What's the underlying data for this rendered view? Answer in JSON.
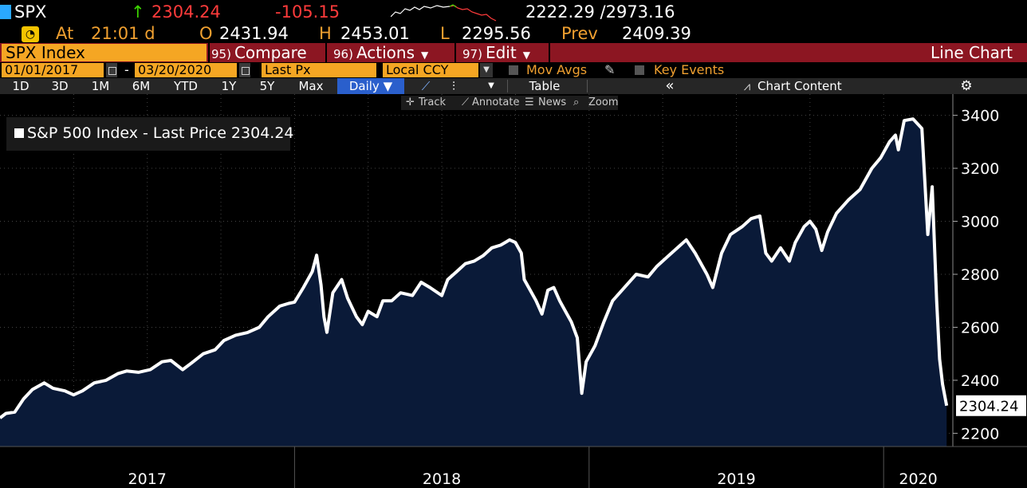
{
  "header": {
    "ticker": "SPX",
    "last_price": "2304.24",
    "net_change": "-105.15",
    "range": "2222.29 /2973.16",
    "up_arrow": "↑"
  },
  "quote": {
    "rt_icon": "gauge-icon",
    "at_label": "At",
    "time": "21:01 d",
    "open_label": "O",
    "open": "2431.94",
    "high_label": "H",
    "high": "2453.01",
    "low_label": "L",
    "low": "2295.56",
    "prev_label": "Prev",
    "prev": "2409.39"
  },
  "menubar": {
    "security": "SPX Index",
    "compare_num": "95)",
    "compare": "Compare",
    "actions_num": "96)",
    "actions": "Actions",
    "edit_num": "97)",
    "edit": "Edit",
    "chart_type": "Line Chart"
  },
  "controls": {
    "start_date": "01/01/2017",
    "end_date": "03/20/2020",
    "dash": "-",
    "field": "Last Px",
    "currency": "Local CCY",
    "mov_avgs": "Mov Avgs",
    "key_events": "Key Events"
  },
  "toolbar": {
    "periods": [
      "1D",
      "3D",
      "1M",
      "6M",
      "YTD",
      "1Y",
      "5Y",
      "Max"
    ],
    "frequency": "Daily ▼",
    "table": "Table",
    "collapse": "«",
    "chart_content": "Chart Content"
  },
  "subtoolbar": {
    "track": "Track",
    "annotate": "Annotate",
    "news": "News",
    "zoom": "Zoom"
  },
  "legend": {
    "text": "S&P 500 Index - Last Price 2304.24"
  },
  "colors": {
    "line": "#ffffff",
    "area_fill": "#0a1a38",
    "up": "#3cd400",
    "down": "#ff3b3b",
    "amber": "#f5a623",
    "menubar": "#8c1622"
  },
  "chart_data": {
    "type": "area",
    "x_unit": "year",
    "ylim": [
      2150,
      3480
    ],
    "y_ticks": [
      2200,
      2400,
      2600,
      2800,
      3000,
      3200,
      3400
    ],
    "x_year_labels": [
      "2017",
      "2018",
      "2019",
      "2020"
    ],
    "last_value_label": "2304.24",
    "grid": true,
    "legend_position": "top-left",
    "series": [
      {
        "name": "S&P 500 Index - Last Price",
        "points": [
          [
            2017.0,
            2258
          ],
          [
            2017.02,
            2275
          ],
          [
            2017.05,
            2280
          ],
          [
            2017.08,
            2330
          ],
          [
            2017.11,
            2365
          ],
          [
            2017.15,
            2390
          ],
          [
            2017.18,
            2370
          ],
          [
            2017.22,
            2360
          ],
          [
            2017.25,
            2345
          ],
          [
            2017.28,
            2360
          ],
          [
            2017.32,
            2390
          ],
          [
            2017.36,
            2400
          ],
          [
            2017.4,
            2425
          ],
          [
            2017.43,
            2435
          ],
          [
            2017.47,
            2430
          ],
          [
            2017.51,
            2440
          ],
          [
            2017.55,
            2470
          ],
          [
            2017.58,
            2475
          ],
          [
            2017.62,
            2440
          ],
          [
            2017.65,
            2465
          ],
          [
            2017.69,
            2500
          ],
          [
            2017.73,
            2515
          ],
          [
            2017.76,
            2550
          ],
          [
            2017.8,
            2570
          ],
          [
            2017.84,
            2580
          ],
          [
            2017.88,
            2600
          ],
          [
            2017.91,
            2640
          ],
          [
            2017.95,
            2680
          ],
          [
            2017.98,
            2690
          ],
          [
            2018.0,
            2695
          ],
          [
            2018.03,
            2750
          ],
          [
            2018.06,
            2810
          ],
          [
            2018.075,
            2872
          ],
          [
            2018.09,
            2760
          ],
          [
            2018.1,
            2640
          ],
          [
            2018.11,
            2581
          ],
          [
            2018.13,
            2730
          ],
          [
            2018.16,
            2780
          ],
          [
            2018.18,
            2710
          ],
          [
            2018.21,
            2640
          ],
          [
            2018.23,
            2610
          ],
          [
            2018.25,
            2660
          ],
          [
            2018.28,
            2640
          ],
          [
            2018.3,
            2700
          ],
          [
            2018.33,
            2700
          ],
          [
            2018.36,
            2730
          ],
          [
            2018.4,
            2720
          ],
          [
            2018.43,
            2770
          ],
          [
            2018.46,
            2750
          ],
          [
            2018.5,
            2720
          ],
          [
            2018.52,
            2780
          ],
          [
            2018.55,
            2810
          ],
          [
            2018.58,
            2840
          ],
          [
            2018.61,
            2850
          ],
          [
            2018.64,
            2870
          ],
          [
            2018.67,
            2900
          ],
          [
            2018.7,
            2910
          ],
          [
            2018.73,
            2930
          ],
          [
            2018.75,
            2920
          ],
          [
            2018.77,
            2880
          ],
          [
            2018.78,
            2780
          ],
          [
            2018.8,
            2740
          ],
          [
            2018.82,
            2700
          ],
          [
            2018.84,
            2650
          ],
          [
            2018.86,
            2740
          ],
          [
            2018.88,
            2750
          ],
          [
            2018.9,
            2700
          ],
          [
            2018.92,
            2660
          ],
          [
            2018.94,
            2620
          ],
          [
            2018.96,
            2560
          ],
          [
            2018.975,
            2351
          ],
          [
            2018.99,
            2470
          ],
          [
            2019.02,
            2530
          ],
          [
            2019.05,
            2620
          ],
          [
            2019.08,
            2700
          ],
          [
            2019.12,
            2750
          ],
          [
            2019.16,
            2800
          ],
          [
            2019.2,
            2790
          ],
          [
            2019.23,
            2830
          ],
          [
            2019.27,
            2870
          ],
          [
            2019.3,
            2900
          ],
          [
            2019.33,
            2930
          ],
          [
            2019.36,
            2880
          ],
          [
            2019.4,
            2800
          ],
          [
            2019.42,
            2750
          ],
          [
            2019.45,
            2880
          ],
          [
            2019.48,
            2950
          ],
          [
            2019.52,
            2980
          ],
          [
            2019.55,
            3010
          ],
          [
            2019.58,
            3020
          ],
          [
            2019.6,
            2880
          ],
          [
            2019.62,
            2850
          ],
          [
            2019.65,
            2900
          ],
          [
            2019.68,
            2850
          ],
          [
            2019.7,
            2920
          ],
          [
            2019.73,
            2980
          ],
          [
            2019.75,
            3000
          ],
          [
            2019.77,
            2970
          ],
          [
            2019.79,
            2890
          ],
          [
            2019.81,
            2960
          ],
          [
            2019.84,
            3030
          ],
          [
            2019.88,
            3080
          ],
          [
            2019.92,
            3120
          ],
          [
            2019.96,
            3200
          ],
          [
            2019.99,
            3240
          ],
          [
            2020.02,
            3300
          ],
          [
            2020.04,
            3325
          ],
          [
            2020.05,
            3270
          ],
          [
            2020.07,
            3380
          ],
          [
            2020.1,
            3386
          ],
          [
            2020.13,
            3350
          ],
          [
            2020.14,
            3150
          ],
          [
            2020.15,
            2950
          ],
          [
            2020.165,
            3130
          ],
          [
            2020.18,
            2700
          ],
          [
            2020.19,
            2480
          ],
          [
            2020.2,
            2385
          ],
          [
            2020.214,
            2304.24
          ]
        ]
      }
    ]
  }
}
